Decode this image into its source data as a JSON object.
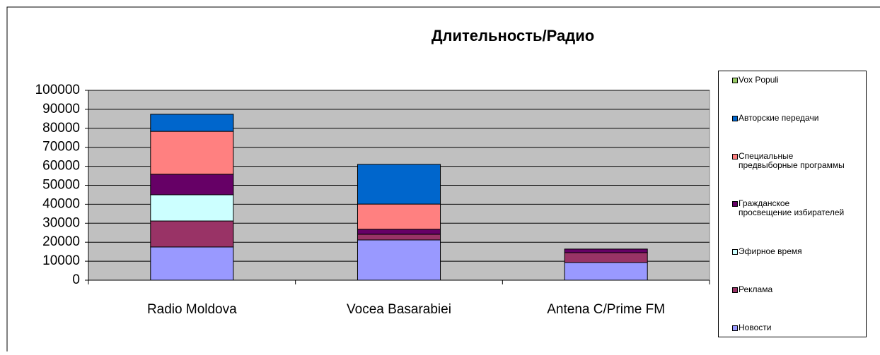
{
  "chart_data": {
    "type": "stacked_bar",
    "title": "Длительность/Радио",
    "categories": [
      "Radio Moldova",
      "Vocea Basarabiei",
      "Antena C/Prime FM"
    ],
    "series": [
      {
        "name": "Новости",
        "color": "#9999ff",
        "values": [
          17500,
          21200,
          9300
        ]
      },
      {
        "name": "Реклама",
        "color": "#993366",
        "values": [
          13700,
          3000,
          5200
        ]
      },
      {
        "name": "Эфирное время",
        "color": "#ccffff",
        "values": [
          13800,
          0,
          0
        ]
      },
      {
        "name": "Гражданское просвещение избирателей",
        "color": "#660066",
        "values": [
          10800,
          2600,
          1900
        ]
      },
      {
        "name": "Специальные предвыборные программы",
        "color": "#ff8080",
        "values": [
          22600,
          13300,
          0
        ]
      },
      {
        "name": "Авторские передачи",
        "color": "#0066cc",
        "values": [
          9000,
          20900,
          0
        ]
      },
      {
        "name": "Vox Populi",
        "color": "#99cc66",
        "values": [
          0,
          0,
          0
        ]
      }
    ],
    "ylim": [
      0,
      100000
    ],
    "yticks": [
      0,
      10000,
      20000,
      30000,
      40000,
      50000,
      60000,
      70000,
      80000,
      90000,
      100000
    ],
    "grid": true,
    "plot_background": "#c0c0c0",
    "legend": "right"
  }
}
